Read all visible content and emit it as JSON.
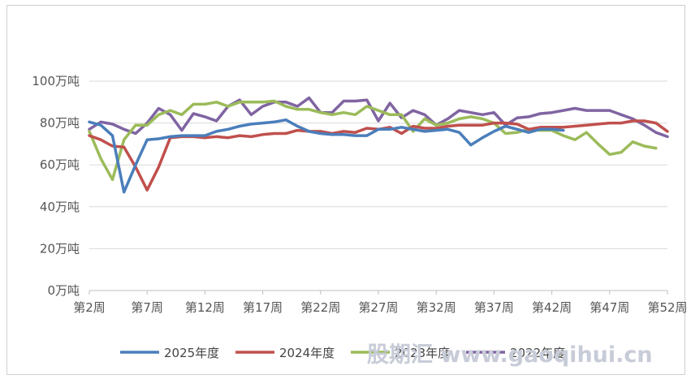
{
  "chart_data": {
    "type": "line",
    "title": "",
    "xlabel": "",
    "ylabel": "",
    "y_unit": "万吨",
    "ylim": [
      0,
      100
    ],
    "y_ticks": [
      0,
      20,
      40,
      60,
      80,
      100
    ],
    "y_tick_labels": [
      "0万吨",
      "20万吨",
      "40万吨",
      "60万吨",
      "80万吨",
      "100万吨"
    ],
    "x": [
      2,
      3,
      4,
      5,
      6,
      7,
      8,
      9,
      10,
      11,
      12,
      13,
      14,
      15,
      16,
      17,
      18,
      19,
      20,
      21,
      22,
      23,
      24,
      25,
      26,
      27,
      28,
      29,
      30,
      31,
      32,
      33,
      34,
      35,
      36,
      37,
      38,
      39,
      40,
      41,
      42,
      43,
      44,
      45,
      46,
      47,
      48,
      49,
      50,
      51,
      52
    ],
    "x_tick_labels": [
      "第2周",
      "第7周",
      "第12周",
      "第17周",
      "第22周",
      "第27周",
      "第32周",
      "第37周",
      "第42周",
      "第47周",
      "第52周"
    ],
    "grid": "horizontal",
    "legend_position": "bottom",
    "series": [
      {
        "name": "2025年度",
        "color": "#4a7ebb",
        "values": [
          80.5,
          79,
          74,
          47,
          60,
          72,
          72.5,
          73.5,
          74,
          74,
          74,
          76,
          77,
          78.5,
          79.5,
          80,
          80.5,
          81.5,
          78.5,
          76,
          75,
          74.5,
          74.5,
          74,
          74,
          77,
          77,
          78,
          77,
          76,
          76.5,
          77,
          75.5,
          69.5,
          73,
          76,
          78.5,
          77,
          75.5,
          77,
          77,
          76.5,
          null,
          null,
          null,
          null,
          null,
          null,
          null,
          null,
          null
        ]
      },
      {
        "name": "2024年度",
        "color": "#c0504d",
        "values": [
          74,
          72,
          69,
          68.5,
          59,
          48,
          59,
          73,
          73.5,
          73.5,
          73,
          73.5,
          73,
          74,
          73.5,
          74.5,
          75,
          75,
          76.5,
          76,
          76,
          75,
          76,
          75.5,
          77.5,
          77,
          78,
          75,
          78.5,
          77.5,
          77.5,
          78.5,
          79,
          79,
          79,
          80,
          80,
          79.5,
          77,
          78,
          78,
          78,
          78.5,
          79,
          79.5,
          80,
          80,
          81,
          81,
          80,
          76
        ]
      },
      {
        "name": "2023年度",
        "color": "#9bbb59",
        "values": [
          76,
          63,
          53,
          72,
          79,
          79,
          84,
          86,
          84,
          89,
          89,
          90,
          88,
          90,
          90,
          90,
          90.5,
          88,
          86.5,
          86.5,
          85,
          84,
          85,
          84,
          88,
          86,
          84,
          84,
          76,
          82,
          79,
          80,
          82,
          83,
          82,
          80,
          75,
          75.5,
          77,
          76.5,
          76.5,
          74,
          72,
          75.5,
          70,
          65,
          66,
          71,
          69,
          68,
          null
        ]
      },
      {
        "name": "2022年度",
        "color": "#8064a2",
        "values": [
          77,
          80.5,
          79.5,
          77,
          75,
          80,
          87,
          84,
          76.5,
          84.5,
          83,
          81,
          88,
          91,
          84,
          88,
          90,
          90,
          88,
          92,
          85,
          85,
          90.5,
          90.5,
          91,
          81,
          89.5,
          82.5,
          86,
          84,
          79,
          82,
          86,
          85,
          84,
          85,
          79,
          82.5,
          83,
          84.5,
          85,
          86,
          87,
          86,
          86,
          86,
          84,
          82,
          79,
          75.5,
          73.5
        ]
      }
    ]
  },
  "watermark": "股期汇 www.gaoqihui.cn"
}
